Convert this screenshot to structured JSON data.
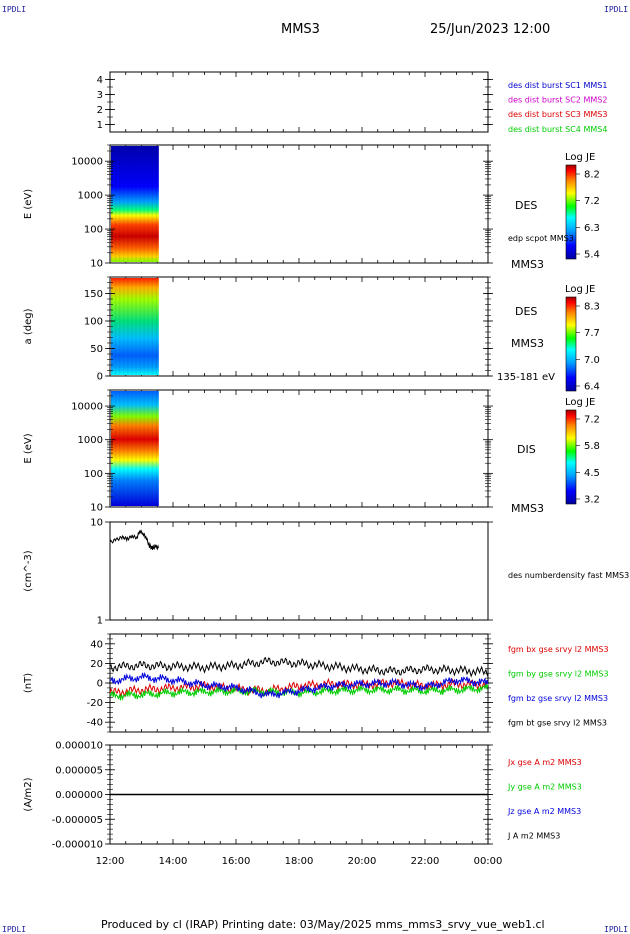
{
  "header": {
    "logo_left": "IPDLI",
    "logo_right": "IPDLI",
    "spacecraft": "MMS3",
    "datetime": "25/Jun/2023 12:00"
  },
  "footer": {
    "credit": "Produced by cl (IRAP)   Printing date: 03/May/2025   mms_mms3_srvy_vue_web1.cl",
    "logo_left": "IPDLI",
    "logo_right": "IPDLI"
  },
  "colors": {
    "mms1": "#0000cc",
    "mms2": "#cc00cc",
    "mms3": "#dd0000",
    "mms4": "#00cc00",
    "bx": "#dd0000",
    "by": "#00cc00",
    "bz": "#0000dd",
    "bt": "#000000"
  },
  "chart_data": [
    {
      "type": "line",
      "panel": "burst-availability",
      "ylim": [
        0.5,
        4.5
      ],
      "yticks": [
        "1",
        "2",
        "3",
        "4"
      ],
      "legend": [
        {
          "label": "des dist burst SC1 MMS1",
          "color": "#0000cc"
        },
        {
          "label": "des dist burst SC2 MMS2",
          "color": "#cc00cc"
        },
        {
          "label": "des dist burst SC3 MMS3",
          "color": "#dd0000"
        },
        {
          "label": "des dist burst SC4 MMS4",
          "color": "#00cc00"
        }
      ]
    },
    {
      "type": "heatmap",
      "panel": "des-energy-spectrogram",
      "ylabel": "E (eV)",
      "yscale": "log",
      "ylim": [
        10,
        30000
      ],
      "yticks": [
        "10",
        "100",
        "1000",
        "10000"
      ],
      "data_interval_hours": [
        0,
        1.55
      ],
      "label": "DES",
      "overlay_label": "edp scpot MMS3",
      "sc_label": "MMS3",
      "colorbar": {
        "title": "Log JE",
        "ticks": [
          "8.2",
          "7.2",
          "6.3",
          "5.4"
        ],
        "range": [
          5.4,
          8.2
        ]
      }
    },
    {
      "type": "heatmap",
      "panel": "des-pitch-angle",
      "ylabel": "a (deg)",
      "ylim": [
        0,
        180
      ],
      "yticks": [
        "0",
        "50",
        "100",
        "150"
      ],
      "data_interval_hours": [
        0,
        1.55
      ],
      "label": "DES",
      "sc_label": "MMS3",
      "energy_range": "135-181 eV",
      "colorbar": {
        "title": "Log JE",
        "ticks": [
          "8.3",
          "7.7",
          "7.0",
          "6.4"
        ],
        "range": [
          6.4,
          8.3
        ]
      }
    },
    {
      "type": "heatmap",
      "panel": "dis-energy-spectrogram",
      "ylabel": "E (eV)",
      "yscale": "log",
      "ylim": [
        10,
        30000
      ],
      "yticks": [
        "10",
        "100",
        "1000",
        "10000"
      ],
      "data_interval_hours": [
        0,
        1.55
      ],
      "label": "DIS",
      "sc_label": "MMS3",
      "colorbar": {
        "title": "Log JE",
        "ticks": [
          "7.2",
          "5.8",
          "4.5",
          "3.2"
        ],
        "range": [
          3.2,
          7.2
        ]
      }
    },
    {
      "type": "line",
      "panel": "number-density",
      "ylabel": "(cm^-3)",
      "yscale": "log",
      "ylim": [
        1,
        10
      ],
      "yticks": [
        "1",
        "10"
      ],
      "series": [
        {
          "name": "des numberdensity fast MMS3",
          "color": "#000000",
          "x": [
            0,
            0.2,
            0.4,
            0.55,
            0.7,
            0.85,
            0.95,
            1.05,
            1.15,
            1.25,
            1.35,
            1.45,
            1.55
          ],
          "y": [
            6.2,
            6.6,
            7.0,
            6.7,
            7.2,
            6.9,
            8.1,
            7.6,
            6.9,
            5.7,
            5.4,
            5.6,
            5.4
          ]
        }
      ]
    },
    {
      "type": "line",
      "panel": "magnetic-field",
      "ylabel": "(nT)",
      "ylim": [
        -50,
        50
      ],
      "yticks": [
        "-40",
        "-20",
        "0",
        "20",
        "40"
      ],
      "series": [
        {
          "name": "fgm bx gse srvy l2 MMS3",
          "color": "#dd0000",
          "x": [
            0,
            1,
            2,
            3,
            4,
            5,
            6,
            7,
            8,
            9,
            10,
            11,
            12
          ],
          "y": [
            -10,
            -7,
            -5,
            -3,
            -6,
            -8,
            -3,
            -1,
            -2,
            0,
            -3,
            -1,
            -2
          ]
        },
        {
          "name": "fgm by gse srvy l2 MMS3",
          "color": "#00cc00",
          "x": [
            0,
            1,
            2,
            3,
            4,
            5,
            6,
            7,
            8,
            9,
            10,
            11,
            12
          ],
          "y": [
            -13,
            -12,
            -10,
            -9,
            -8,
            -9,
            -10,
            -8,
            -7,
            -7,
            -8,
            -7,
            -5
          ]
        },
        {
          "name": "fgm bz gse srvy l2 MMS3",
          "color": "#0000dd",
          "x": [
            0,
            1,
            2,
            3,
            4,
            5,
            6,
            7,
            8,
            9,
            10,
            11,
            12
          ],
          "y": [
            2,
            6,
            3,
            -2,
            -5,
            -12,
            -8,
            -3,
            -1,
            0,
            -4,
            3,
            0
          ]
        },
        {
          "name": "fgm bt gse srvy l2 MMS3",
          "color": "#000000",
          "x": [
            0,
            1,
            2,
            3,
            4,
            5,
            6,
            7,
            8,
            9,
            10,
            11,
            12
          ],
          "y": [
            16,
            18,
            17,
            16,
            18,
            22,
            20,
            17,
            14,
            12,
            14,
            13,
            11
          ]
        }
      ]
    },
    {
      "type": "line",
      "panel": "current-density",
      "ylabel": "(A/m2)",
      "ylim": [
        -1e-05,
        1e-05
      ],
      "yticks": [
        "-0.000010",
        "-0.000005",
        "0.000000",
        "0.000005",
        "0.000010"
      ],
      "series": [
        {
          "name": "Jx gse A m2 MMS3",
          "color": "#dd0000"
        },
        {
          "name": "Jy gse A m2 MMS3",
          "color": "#00cc00"
        },
        {
          "name": "Jz gse A m2 MMS3",
          "color": "#0000dd"
        },
        {
          "name": "J A m2 MMS3",
          "color": "#000000",
          "x": [
            0,
            12
          ],
          "y": [
            0,
            0
          ]
        }
      ]
    }
  ],
  "time_axis": {
    "ticks": [
      "12:00",
      "14:00",
      "16:00",
      "18:00",
      "20:00",
      "22:00",
      "00:00"
    ],
    "range_hours": [
      0,
      12
    ]
  }
}
